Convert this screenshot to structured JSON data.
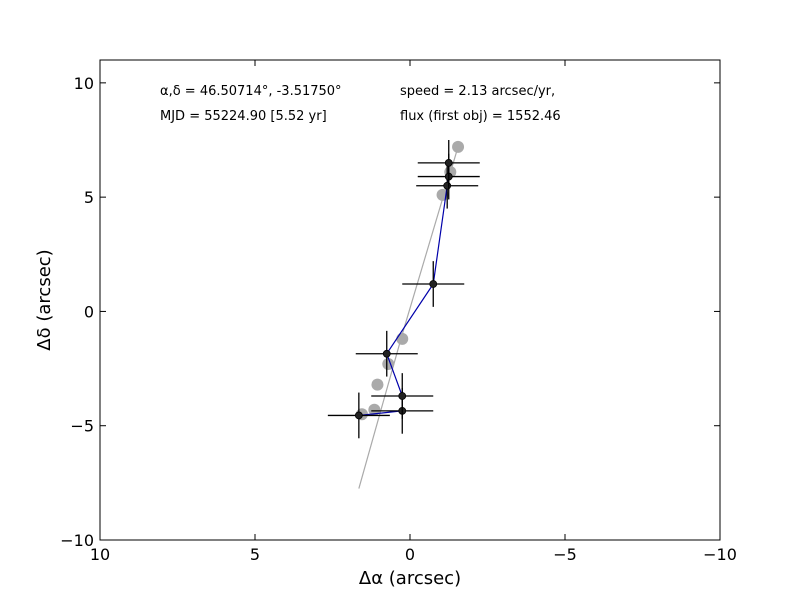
{
  "chart_data": {
    "type": "scatter",
    "xlabel": "Δα (arcsec)",
    "ylabel": "Δδ (arcsec)",
    "xlim": [
      10,
      -10
    ],
    "ylim": [
      -10,
      11
    ],
    "x_ticks": [
      10,
      5,
      0,
      -5,
      -10
    ],
    "y_ticks": [
      10,
      5,
      0,
      -5,
      -10
    ],
    "x_tick_labels": [
      "10",
      "5",
      "0",
      "−5",
      "−10"
    ],
    "y_tick_labels": [
      "10",
      "5",
      "0",
      "−5",
      "−10"
    ],
    "annotations": [
      {
        "text": "α,δ = 46.50714°, -3.51750°",
        "pos": "top-left"
      },
      {
        "text": "MJD = 55224.90 [5.52 yr]",
        "pos": "top-left-2"
      },
      {
        "text": "speed = 2.13 arcsec/yr,",
        "pos": "top-right"
      },
      {
        "text": "flux (first obj) = 1552.46",
        "pos": "top-right-2"
      }
    ],
    "series": [
      {
        "type": "line",
        "color": "#aaaaaa",
        "x": [
          1.65,
          0.25,
          -1.55
        ],
        "y": [
          -7.75,
          -1.0,
          7.2
        ]
      },
      {
        "type": "scatter",
        "color": "#aaaaaa",
        "x": [
          1.55,
          1.15,
          1.05,
          0.7,
          0.25,
          -1.05,
          -1.3,
          -1.55
        ],
        "y": [
          -4.5,
          -4.3,
          -3.2,
          -2.3,
          -1.2,
          5.1,
          6.1,
          7.2
        ]
      },
      {
        "type": "line",
        "color": "#0000aa",
        "x": [
          1.65,
          0.25,
          0.25,
          0.75,
          -0.75,
          -1.2,
          -1.25,
          -1.25
        ],
        "y": [
          -4.55,
          -4.35,
          -3.7,
          -1.85,
          1.2,
          5.5,
          5.9,
          6.5
        ]
      },
      {
        "type": "errorbar",
        "color": "#000000",
        "marker_color": "#222222",
        "x": [
          1.65,
          0.25,
          0.25,
          0.75,
          -0.75,
          -1.2,
          -1.25,
          -1.25
        ],
        "y": [
          -4.55,
          -4.35,
          -3.7,
          -1.85,
          1.2,
          5.5,
          5.9,
          6.5
        ],
        "xerr": [
          1.0,
          1.0,
          1.0,
          1.0,
          1.0,
          1.0,
          1.0,
          1.0
        ],
        "yerr": [
          1.0,
          1.0,
          1.0,
          1.0,
          1.0,
          1.0,
          1.0,
          1.0
        ]
      }
    ]
  }
}
